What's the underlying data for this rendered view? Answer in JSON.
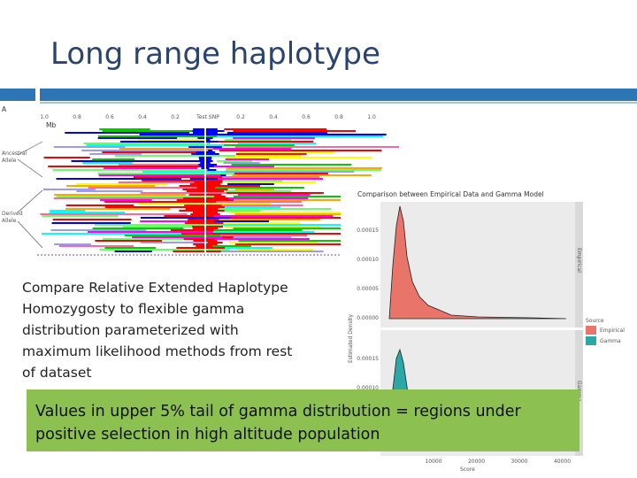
{
  "slide": {
    "title": "Long range haplotype",
    "body_text": [
      "Compare Relative Extended Haplotype",
      "Homozygosty to flexible gamma",
      "distribution parameterized with",
      "maximum likelihood methods from rest",
      "of dataset"
    ],
    "callout": [
      "Values in upper 5% tail of gamma distribution = regions under",
      "positive selection in high altitude population"
    ],
    "haplotype_figure": {
      "panel_label": "A",
      "axis_labels": [
        "1.0",
        "0.8",
        "0.6",
        "0.4",
        "0.2",
        "Test SNP",
        "0.2",
        "0.4",
        "0.6",
        "0.8",
        "1.0"
      ],
      "unit": "Mb",
      "groups": [
        [
          "Ancestral",
          "Allele"
        ],
        [
          "Derived",
          "Allele"
        ]
      ]
    },
    "density_figure": {
      "title": "Comparison between Empirical Data and Gamma Model",
      "y_label": "Estimated Density",
      "x_label": "Score",
      "top_y_ticks": [
        "0.00015",
        "0.00010",
        "0.00005",
        "0.00000"
      ],
      "bottom_y_ticks": [
        "0.00015",
        "0.00010"
      ],
      "x_ticks": [
        "10000",
        "20000",
        "30000",
        "40000"
      ],
      "strip_labels": [
        "Empirical",
        "Gamma"
      ],
      "legend_title": "Source",
      "legend_items": [
        "Empirical",
        "Gamma"
      ]
    }
  }
}
